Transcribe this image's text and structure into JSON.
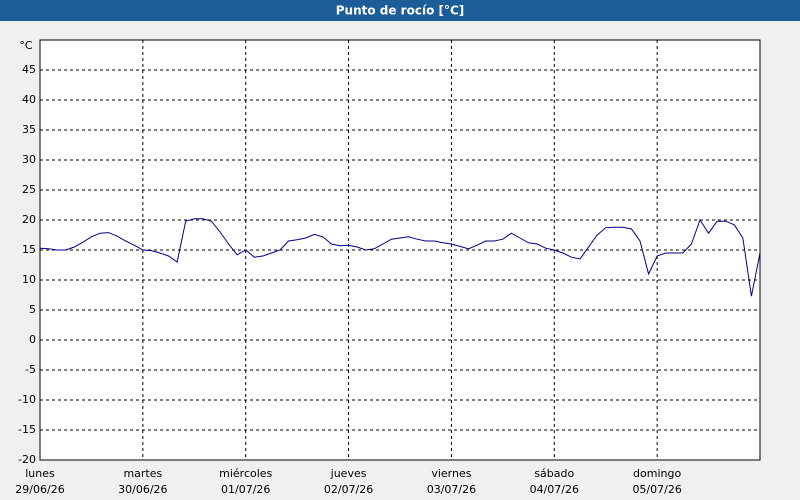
{
  "chart_data": {
    "type": "line",
    "title": "Punto de rocío [°C]",
    "y_unit": "°C",
    "ylim": [
      -20,
      50
    ],
    "yticks": [
      -20,
      -15,
      -10,
      -5,
      0,
      5,
      10,
      15,
      20,
      25,
      30,
      35,
      40,
      45
    ],
    "grid": true,
    "color": "#00008b",
    "x_labels": [
      {
        "day": "lunes",
        "date": "29/06/26"
      },
      {
        "day": "martes",
        "date": "30/06/26"
      },
      {
        "day": "miércoles",
        "date": "01/07/26"
      },
      {
        "day": "jueves",
        "date": "02/07/26"
      },
      {
        "day": "viernes",
        "date": "03/07/26"
      },
      {
        "day": "sábado",
        "date": "04/07/26"
      },
      {
        "day": "domingo",
        "date": "05/07/26"
      }
    ],
    "values": [
      15.3,
      15.2,
      15.0,
      15.0,
      15.5,
      16.3,
      17.2,
      17.8,
      17.9,
      17.3,
      16.5,
      15.8,
      15.0,
      14.9,
      14.5,
      14.0,
      13.0,
      19.8,
      20.2,
      20.2,
      19.8,
      18.0,
      16.0,
      14.2,
      15.0,
      13.8,
      14.0,
      14.5,
      15.0,
      16.5,
      16.7,
      17.0,
      17.6,
      17.2,
      16.0,
      15.7,
      15.8,
      15.5,
      15.0,
      15.2,
      16.0,
      16.8,
      17.0,
      17.2,
      16.8,
      16.5,
      16.5,
      16.2,
      16.0,
      15.6,
      15.2,
      15.8,
      16.5,
      16.5,
      16.8,
      17.8,
      17.0,
      16.2,
      16.0,
      15.3,
      15.0,
      14.5,
      13.8,
      13.5,
      15.5,
      17.5,
      18.7,
      18.8,
      18.8,
      18.5,
      16.5,
      11.0,
      14.0,
      14.5,
      14.5,
      14.5,
      16.0,
      20.0,
      17.8,
      19.8,
      19.8,
      19.2,
      17.0,
      7.3,
      14.5
    ]
  }
}
